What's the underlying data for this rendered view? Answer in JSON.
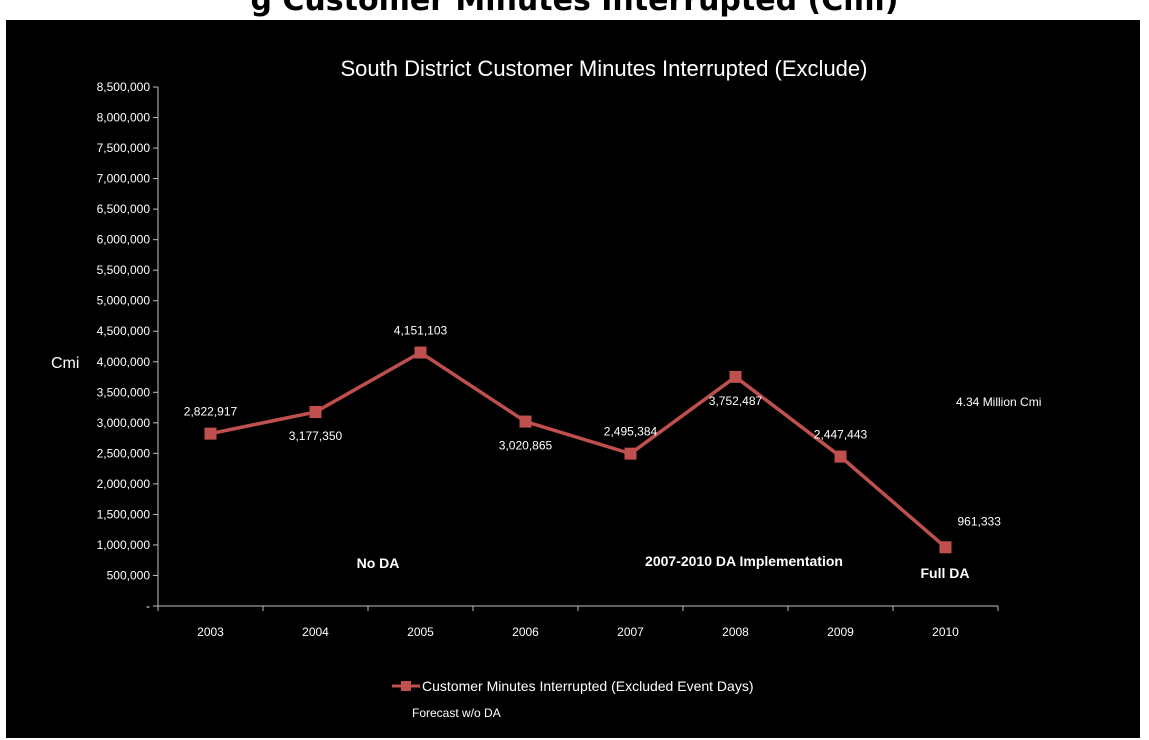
{
  "page": {
    "heading_partial": "g Customer Minutes Interrupted (Cmi)"
  },
  "colors": {
    "background": "#000000",
    "series": "#c0504d",
    "text": "#ffffff",
    "axis": "#bfbfbf"
  },
  "chart_data": {
    "type": "line",
    "title": "South District  Customer Minutes Interrupted   (Exclude)",
    "xlabel": "",
    "ylabel": "Cmi",
    "categories": [
      "2003",
      "2004",
      "2005",
      "2006",
      "2007",
      "2008",
      "2009",
      "2010"
    ],
    "series": [
      {
        "name": "Customer Minutes  Interrupted  (Excluded Event Days)",
        "color": "#c0504d",
        "marker": "square",
        "values": [
          2822917,
          3177350,
          4151103,
          3020865,
          2495384,
          3752487,
          2447443,
          961333
        ],
        "labels": [
          "2,822,917",
          "3,177,350",
          "4,151,103",
          "3,020,865",
          "2,495,384",
          "3,752,487",
          "2,447,443",
          "961,333"
        ],
        "label_positions": [
          "above",
          "below",
          "above",
          "below",
          "above",
          "below",
          "above",
          "above-right"
        ]
      }
    ],
    "ylim": [
      0,
      8500000
    ],
    "y_ticks": [
      "-",
      "500,000",
      "1,000,000",
      "1,500,000",
      "2,000,000",
      "2,500,000",
      "3,000,000",
      "3,500,000",
      "4,000,000",
      "4,500,000",
      "5,000,000",
      "5,500,000",
      "6,000,000",
      "6,500,000",
      "7,000,000",
      "7,500,000",
      "8,000,000",
      "8,500,000"
    ],
    "grid": false,
    "legend": {
      "placement": "bottom-center",
      "entries": [
        "Customer Minutes  Interrupted  (Excluded Event Days)",
        "Forecast w/o DA"
      ]
    },
    "annotations": {
      "no_da": "No DA",
      "implementation": "2007-2010 DA  Implementation",
      "full_da": "Full DA",
      "forecast_value": "4.34  Million Cmi"
    }
  }
}
